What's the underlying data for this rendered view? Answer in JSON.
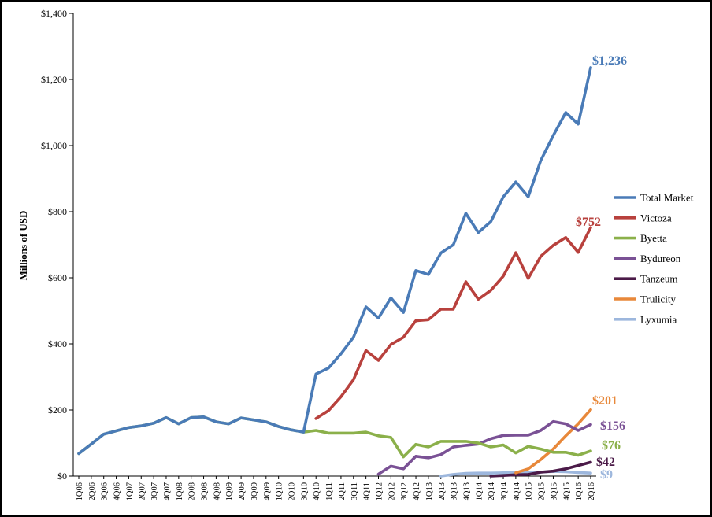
{
  "chart_data": {
    "type": "line",
    "title": "",
    "xlabel": "",
    "ylabel": "Millions of USD",
    "ylim": [
      0,
      1400
    ],
    "yticks": [
      "$0",
      "$200",
      "$400",
      "$600",
      "$800",
      "$1,000",
      "$1,200",
      "$1,400"
    ],
    "grid": false,
    "legend_position": "right",
    "categories": [
      "1Q06",
      "2Q06",
      "3Q06",
      "4Q06",
      "1Q07",
      "2Q07",
      "3Q07",
      "4Q07",
      "1Q08",
      "2Q08",
      "3Q08",
      "4Q08",
      "1Q09",
      "2Q09",
      "3Q09",
      "4Q09",
      "1Q10",
      "2Q10",
      "3Q10",
      "4Q10",
      "1Q11",
      "2Q11",
      "3Q11",
      "4Q11",
      "1Q12",
      "2Q12",
      "3Q12",
      "4Q12",
      "1Q13",
      "2Q13",
      "3Q13",
      "4Q13",
      "1Q14",
      "2Q14",
      "3Q14",
      "4Q14",
      "1Q15",
      "2Q15",
      "3Q15",
      "4Q15",
      "1Q16",
      "2Q16"
    ],
    "series": [
      {
        "name": "Total Market",
        "color": "#4a7bb7",
        "end_label": "$1,236",
        "values": [
          68,
          97,
          127,
          137,
          147,
          152,
          160,
          177,
          158,
          177,
          179,
          164,
          158,
          176,
          170,
          164,
          150,
          140,
          133,
          309,
          327,
          370,
          420,
          512,
          478,
          539,
          495,
          622,
          610,
          675,
          700,
          795,
          737,
          770,
          845,
          890,
          845,
          955,
          1030,
          1100,
          1065,
          1236
        ]
      },
      {
        "name": "Victoza",
        "color": "#b8413d",
        "end_label": "$752",
        "values": [
          null,
          null,
          null,
          null,
          null,
          null,
          null,
          null,
          null,
          null,
          null,
          null,
          null,
          null,
          null,
          null,
          null,
          null,
          null,
          174,
          198,
          240,
          292,
          380,
          350,
          398,
          420,
          470,
          473,
          505,
          505,
          588,
          535,
          562,
          605,
          676,
          598,
          665,
          698,
          722,
          677,
          752
        ]
      },
      {
        "name": "Byetta",
        "color": "#8bb04a",
        "end_label": "$76",
        "values": [
          68,
          97,
          127,
          137,
          147,
          152,
          160,
          177,
          158,
          177,
          179,
          164,
          158,
          176,
          170,
          164,
          150,
          140,
          133,
          138,
          130,
          130,
          130,
          133,
          122,
          117,
          58,
          96,
          88,
          105,
          105,
          105,
          100,
          88,
          94,
          70,
          90,
          82,
          72,
          72,
          63,
          76
        ]
      },
      {
        "name": "Bydureon",
        "color": "#7a5195",
        "end_label": "$156",
        "values": [
          null,
          null,
          null,
          null,
          null,
          null,
          null,
          null,
          null,
          null,
          null,
          null,
          null,
          null,
          null,
          null,
          null,
          null,
          null,
          null,
          null,
          null,
          null,
          null,
          6,
          30,
          22,
          60,
          55,
          65,
          88,
          93,
          97,
          113,
          123,
          124,
          124,
          138,
          165,
          158,
          138,
          156
        ]
      },
      {
        "name": "Tanzeum",
        "color": "#4b1a48",
        "end_label": "$42",
        "values": [
          null,
          null,
          null,
          null,
          null,
          null,
          null,
          null,
          null,
          null,
          null,
          null,
          null,
          null,
          null,
          null,
          null,
          null,
          null,
          null,
          null,
          null,
          null,
          null,
          null,
          null,
          null,
          null,
          null,
          null,
          null,
          null,
          null,
          0,
          2,
          4,
          5,
          12,
          15,
          22,
          32,
          42
        ]
      },
      {
        "name": "Trulicity",
        "color": "#e8883a",
        "end_label": "$201",
        "values": [
          null,
          null,
          null,
          null,
          null,
          null,
          null,
          null,
          null,
          null,
          null,
          null,
          null,
          null,
          null,
          null,
          null,
          null,
          null,
          null,
          null,
          null,
          null,
          null,
          null,
          null,
          null,
          null,
          null,
          null,
          null,
          null,
          null,
          null,
          null,
          10,
          22,
          50,
          82,
          122,
          158,
          201
        ]
      },
      {
        "name": "Lyxumia",
        "color": "#9db7dd",
        "end_label": "$9",
        "values": [
          null,
          null,
          null,
          null,
          null,
          null,
          null,
          null,
          null,
          null,
          null,
          null,
          null,
          null,
          null,
          null,
          null,
          null,
          null,
          null,
          null,
          null,
          null,
          null,
          null,
          null,
          null,
          null,
          null,
          0,
          5,
          8,
          9,
          9,
          10,
          11,
          11,
          12,
          14,
          13,
          11,
          9
        ]
      }
    ]
  }
}
